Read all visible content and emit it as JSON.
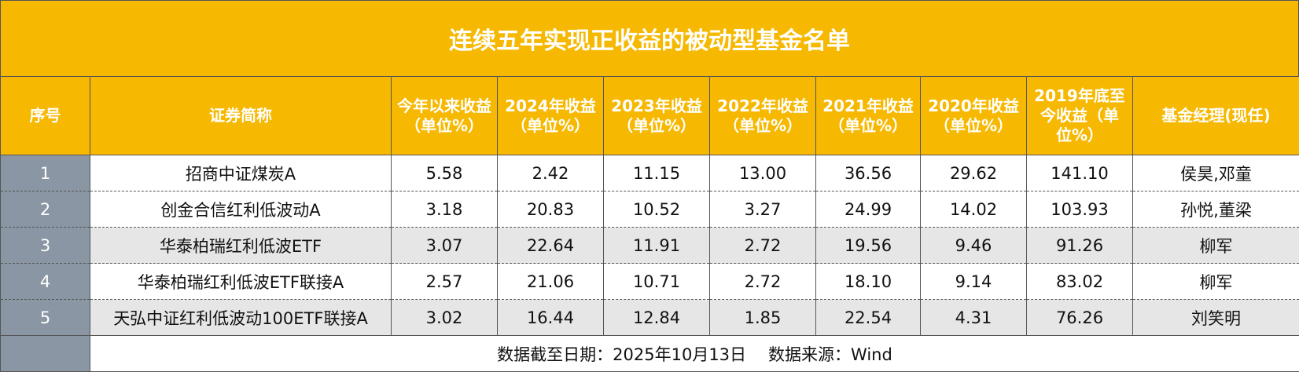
{
  "title": "连续五年实现正收益的被动型基金名单",
  "table": {
    "header": [
      "序号",
      "证券简称",
      "今年以来收益（单位%）",
      "2024年收益（单位%）",
      "2023年收益（单位%）",
      "2022年收益（单位%）",
      "2021年收益（单位%）",
      "2020年收益（单位%）",
      "2019年底至今收益（单位%）",
      "基金经理(现任)"
    ],
    "rows": [
      [
        "1",
        "招商中证煤炭A",
        "5.58",
        "2.42",
        "11.15",
        "13.00",
        "36.56",
        "29.62",
        "141.10",
        "侯昊,邓童"
      ],
      [
        "2",
        "创金合信红利低波动A",
        "3.18",
        "20.83",
        "10.52",
        "3.27",
        "24.99",
        "14.02",
        "103.93",
        "孙悦,董梁"
      ],
      [
        "3",
        "华泰柏瑞红利低波ETF",
        "3.07",
        "22.64",
        "11.91",
        "2.72",
        "19.56",
        "9.46",
        "91.26",
        "柳军"
      ],
      [
        "4",
        "华泰柏瑞红利低波ETF联接A",
        "2.57",
        "21.06",
        "10.71",
        "2.72",
        "18.10",
        "9.14",
        "83.02",
        "柳军"
      ],
      [
        "5",
        "天弘中证红利低波动100ETF联接A",
        "3.02",
        "16.44",
        "12.84",
        "1.85",
        "22.54",
        "4.31",
        "76.26",
        "刘笑明"
      ]
    ]
  },
  "footer": [
    "数据截至日期：2025年10月13日",
    "数据来源：Wind"
  ]
}
